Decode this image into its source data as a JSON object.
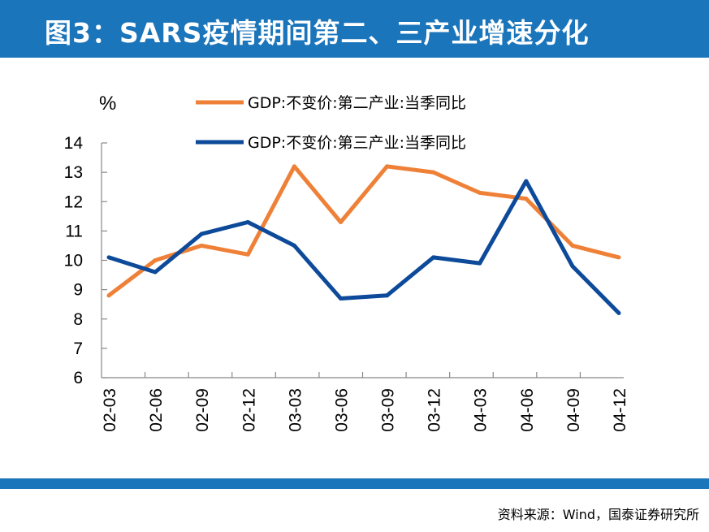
{
  "header": {
    "title": "图3：SARS疫情期间第二、三产业增速分化"
  },
  "footer": {
    "source": "资料来源：Wind，国泰证券研究所"
  },
  "colors": {
    "brand": "#1b75bb",
    "series_secondary": "#ee8137",
    "series_tertiary": "#0d4a9a"
  },
  "chart_data": {
    "type": "line",
    "ylabel": "%",
    "ylim": [
      6,
      14
    ],
    "yticks": [
      6,
      7,
      8,
      9,
      10,
      11,
      12,
      13,
      14
    ],
    "grid": false,
    "legend_position": "top",
    "categories": [
      "02-03",
      "02-06",
      "02-09",
      "02-12",
      "03-03",
      "03-06",
      "03-09",
      "03-12",
      "04-03",
      "04-06",
      "04-09",
      "04-12"
    ],
    "series": [
      {
        "name": "GDP:不变价:第二产业:当季同比",
        "color": "#ee8137",
        "values": [
          8.8,
          10.0,
          10.5,
          10.2,
          13.2,
          11.3,
          13.2,
          13.0,
          12.3,
          12.1,
          10.5,
          10.1
        ]
      },
      {
        "name": "GDP:不变价:第三产业:当季同比",
        "color": "#0d4a9a",
        "values": [
          10.1,
          9.6,
          10.9,
          11.3,
          10.5,
          8.7,
          8.8,
          10.1,
          9.9,
          12.7,
          9.8,
          8.2
        ]
      }
    ]
  }
}
